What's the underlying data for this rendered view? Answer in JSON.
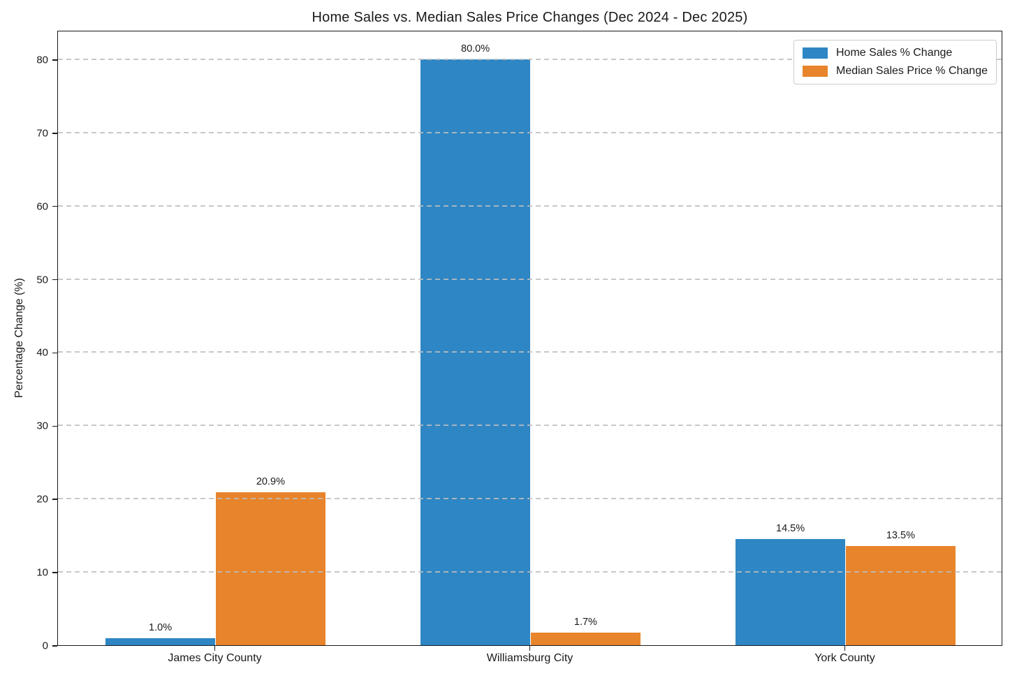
{
  "figure": {
    "title": "Home Sales vs. Median Sales Price Changes (Dec 2024 - Dec 2025)",
    "ylabel": "Percentage Change (%)"
  },
  "chart_data": {
    "type": "bar",
    "title": "Home Sales vs. Median Sales Price Changes (Dec 2024 - Dec 2025)",
    "xlabel": "",
    "ylabel": "Percentage Change (%)",
    "categories": [
      "James City County",
      "Williamsburg City",
      "York County"
    ],
    "series": [
      {
        "name": "Home Sales % Change",
        "color": "#2e86c4",
        "values": [
          1.0,
          80.0,
          14.5
        ],
        "labels": [
          "1.0%",
          "80.0%",
          "14.5%"
        ]
      },
      {
        "name": "Median Sales Price % Change",
        "color": "#e8842b",
        "values": [
          20.9,
          1.7,
          13.5
        ],
        "labels": [
          "20.9%",
          "1.7%",
          "13.5%"
        ]
      }
    ],
    "ylim": [
      0,
      84
    ],
    "yticks": [
      0,
      10,
      20,
      30,
      40,
      50,
      60,
      70,
      80
    ],
    "grid": "horizontal-dashed",
    "grid_color": "#c9c9c9",
    "legend_position": "upper-right",
    "bar_group_width_fraction": 0.7
  }
}
